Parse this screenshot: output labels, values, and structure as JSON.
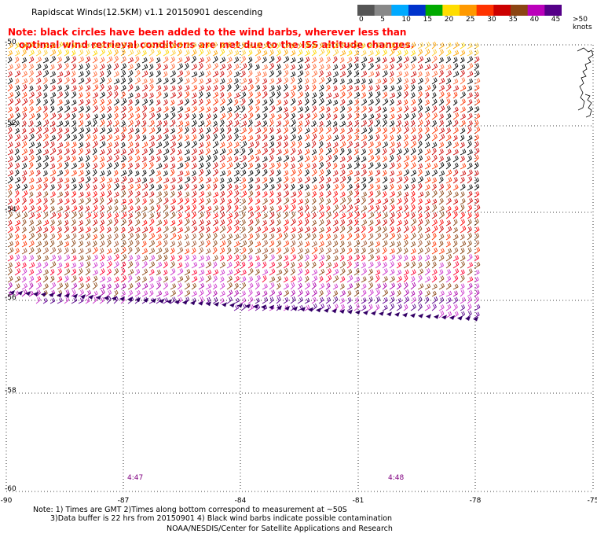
{
  "title": "Rapidscat Winds(12.5KM) v1.1 20150901 descending",
  "note": {
    "line1": "Note: black circles have been added to the wind barbs, wherever less than",
    "line2": "optimal wind retrieval conditions are met due to the ISS altitude changes."
  },
  "color_scale": {
    "labels": [
      "0",
      "5",
      "10",
      "15",
      "20",
      "25",
      "30",
      "35",
      "40",
      "45",
      ">50 knots"
    ],
    "colors": [
      "#555555",
      "#888888",
      "#00aaff",
      "#0033cc",
      "#00aa00",
      "#ffdd00",
      "#ff9900",
      "#ff3300",
      "#cc0000",
      "#8b4513",
      "#bb00bb",
      "#550088"
    ]
  },
  "axes": {
    "x_ticks": [
      "-90",
      "-87",
      "-84",
      "-81",
      "-78",
      "-75"
    ],
    "y_ticks": [
      "-50",
      "-52",
      "-54",
      "-56",
      "-58",
      "-60"
    ]
  },
  "time_labels": [
    "4:47",
    "4:48"
  ],
  "footnotes": {
    "line1": "Note: 1) Times are GMT 2)Times along bottom correspond to measurement at ~50S",
    "line2": "3)Data buffer is 22 hrs from 20150901 4) Black wind barbs indicate possible contamination",
    "line3": "NOAA/NESDIS/Center for Satellite Applications and Research"
  }
}
